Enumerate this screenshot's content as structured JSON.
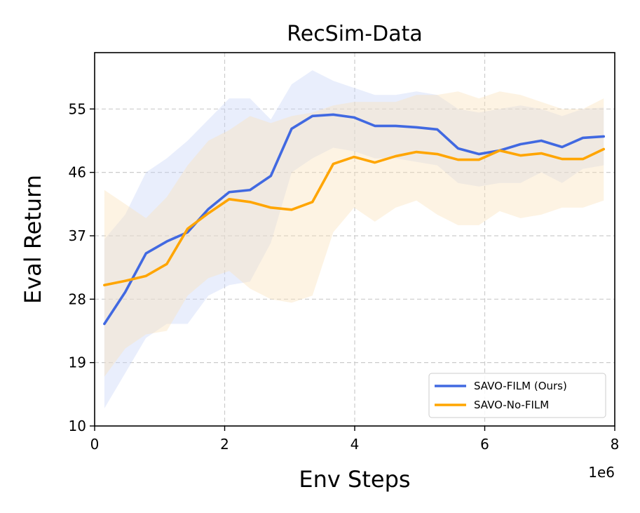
{
  "chart_data": {
    "type": "line",
    "title": "RecSim-Data",
    "xlabel": "Env Steps",
    "ylabel": "Eval Return",
    "x_offset_label": "1e6",
    "xlim": [
      0,
      8
    ],
    "ylim": [
      10,
      63
    ],
    "xticks": [
      0,
      2,
      4,
      6,
      8
    ],
    "yticks": [
      10,
      19,
      28,
      37,
      46,
      55
    ],
    "grid": true,
    "legend_position": "lower-right",
    "series": [
      {
        "name": "SAVO-FILM (Ours)",
        "color": "#4169e1",
        "band_color": "#c8d5f7",
        "x": [
          0.15,
          0.47,
          0.79,
          1.11,
          1.43,
          1.75,
          2.07,
          2.39,
          2.71,
          3.03,
          3.35,
          3.67,
          3.99,
          4.31,
          4.63,
          4.95,
          5.27,
          5.59,
          5.91,
          6.23,
          6.55,
          6.87,
          7.19,
          7.51,
          7.83
        ],
        "y": [
          24.5,
          29.0,
          34.5,
          36.2,
          37.5,
          40.8,
          43.2,
          43.5,
          45.5,
          52.2,
          54.0,
          54.2,
          53.8,
          52.6,
          52.6,
          52.4,
          52.1,
          49.4,
          48.6,
          49.1,
          50.0,
          50.5,
          49.6,
          50.9,
          51.1
        ],
        "y_upper": [
          36.5,
          40.0,
          46.0,
          48.0,
          50.5,
          53.5,
          56.5,
          56.5,
          53.5,
          58.5,
          60.5,
          59.0,
          58.0,
          57.0,
          57.0,
          57.5,
          57.0,
          55.0,
          54.5,
          55.0,
          55.5,
          55.0,
          54.0,
          55.0,
          55.2
        ],
        "y_lower": [
          12.5,
          17.5,
          22.5,
          24.5,
          24.5,
          28.5,
          30.0,
          30.5,
          36.0,
          46.0,
          48.0,
          49.5,
          49.0,
          48.0,
          48.0,
          47.5,
          47.0,
          44.5,
          44.0,
          44.5,
          44.5,
          46.0,
          44.5,
          46.5,
          47.0
        ]
      },
      {
        "name": "SAVO-No-FILM",
        "color": "#ffa500",
        "band_color": "#fbe1b8",
        "x": [
          0.15,
          0.47,
          0.79,
          1.11,
          1.43,
          1.75,
          2.07,
          2.39,
          2.71,
          3.03,
          3.35,
          3.67,
          3.99,
          4.31,
          4.63,
          4.95,
          5.27,
          5.59,
          5.91,
          6.23,
          6.55,
          6.87,
          7.19,
          7.51,
          7.83
        ],
        "y": [
          30.0,
          30.6,
          31.3,
          33.0,
          38.0,
          40.2,
          42.2,
          41.8,
          41.0,
          40.7,
          41.8,
          47.2,
          48.2,
          47.4,
          48.3,
          48.9,
          48.6,
          47.8,
          47.8,
          49.1,
          48.4,
          48.7,
          47.9,
          47.9,
          49.3
        ],
        "y_upper": [
          43.5,
          41.5,
          39.5,
          42.5,
          47.0,
          50.5,
          52.0,
          54.0,
          53.0,
          54.0,
          54.5,
          55.5,
          56.0,
          56.0,
          56.0,
          57.0,
          57.0,
          57.5,
          56.5,
          57.5,
          57.0,
          56.0,
          55.0,
          55.0,
          56.5
        ],
        "y_lower": [
          17.0,
          21.0,
          23.0,
          23.5,
          28.5,
          31.0,
          32.0,
          29.5,
          28.0,
          27.5,
          28.5,
          37.5,
          41.0,
          39.0,
          41.0,
          42.0,
          40.0,
          38.5,
          38.5,
          40.5,
          39.5,
          40.0,
          41.0,
          41.0,
          42.0
        ]
      }
    ]
  }
}
